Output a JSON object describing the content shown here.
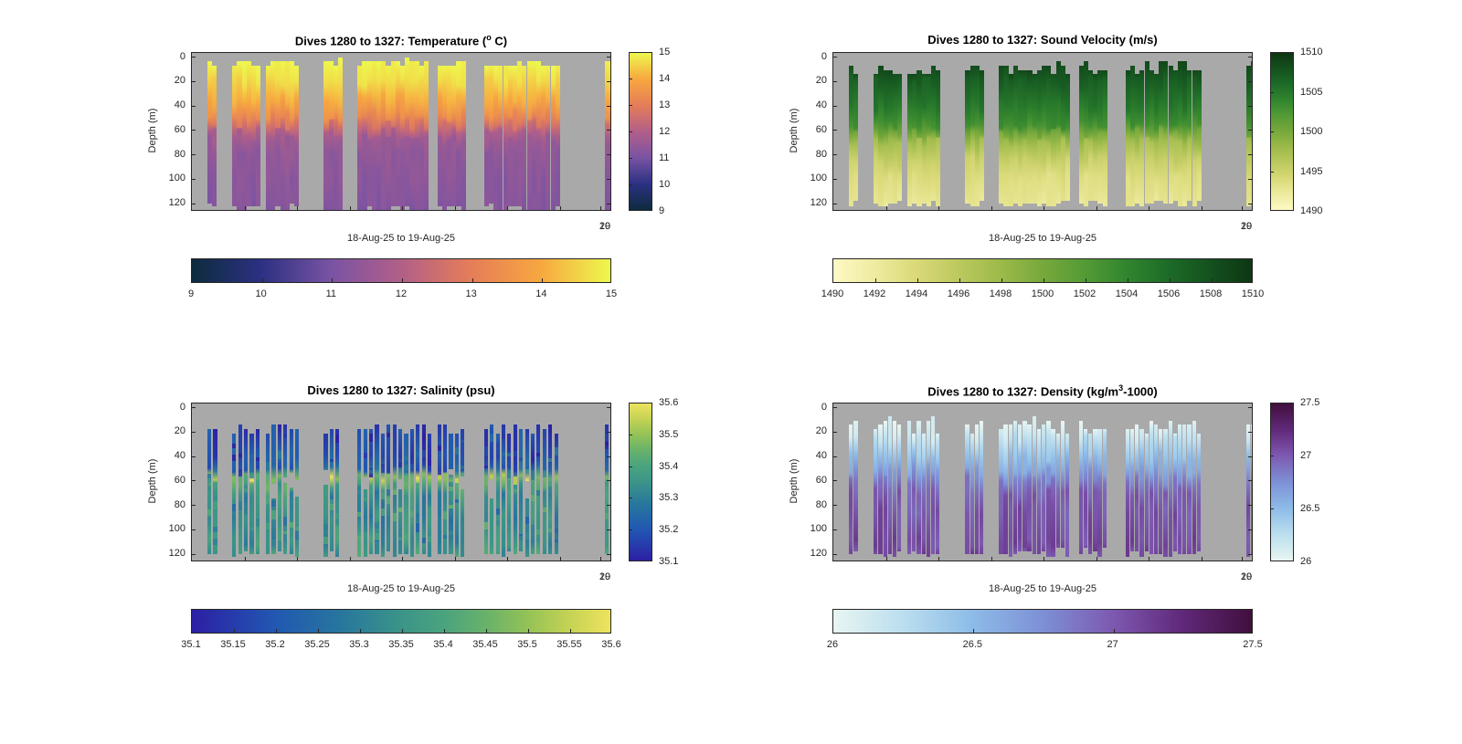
{
  "figure": {
    "background": "#ffffff",
    "plot_background": "#a9a9a9",
    "axis_color": "#262626"
  },
  "chart_data": {
    "type": "heatmap",
    "layout_hint": "2x2 grid of MATLAB-style ocean glider section plots, each with a vertical colorbar at right and a horizontal colorbar below",
    "x_axis": {
      "label": "18-Aug-25 to 19-Aug-25",
      "overlap_tick_labels": [
        "19",
        "20"
      ]
    },
    "y_axis": {
      "label": "Depth (m)",
      "ticks": [
        "0",
        "20",
        "40",
        "60",
        "80",
        "100",
        "120"
      ],
      "tick_values": [
        0,
        20,
        40,
        60,
        80,
        100,
        120
      ],
      "range": [
        -3.4,
        126.7
      ]
    },
    "dive_groups": [
      [
        0.037,
        0.065
      ],
      [
        0.096,
        0.161
      ],
      [
        0.176,
        0.257
      ],
      [
        0.314,
        0.357
      ],
      [
        0.394,
        0.569
      ],
      [
        0.584,
        0.651
      ],
      [
        0.695,
        0.874
      ],
      [
        0.982,
        1.005
      ]
    ],
    "panels": [
      {
        "id": "temperature",
        "title_pre": "Dives 1280 to 1327: Temperature (",
        "title_sup": "o",
        "title_post": " C)",
        "cmin": 9,
        "cmax": 15,
        "colorbar_v_ticks": [
          "9",
          "10",
          "11",
          "12",
          "13",
          "14",
          "15"
        ],
        "colorbar_v_values": [
          9,
          10,
          11,
          12,
          13,
          14,
          15
        ],
        "colorbar_h_ticks": [
          "9",
          "10",
          "11",
          "12",
          "13",
          "14",
          "15"
        ],
        "colorbar_h_values": [
          9,
          10,
          11,
          12,
          13,
          14,
          15
        ],
        "colormap": [
          [
            0,
            "#0d2b3e"
          ],
          [
            0.167,
            "#2c3183"
          ],
          [
            0.333,
            "#7a53a3"
          ],
          [
            0.5,
            "#b25f88"
          ],
          [
            0.667,
            "#e57d58"
          ],
          [
            0.833,
            "#f7a73f"
          ],
          [
            1,
            "#eef84e"
          ]
        ],
        "profile": [
          [
            0,
            15
          ],
          [
            20,
            14.6
          ],
          [
            35,
            14.05
          ],
          [
            48,
            13.4
          ],
          [
            55,
            12.7
          ],
          [
            62,
            11.95
          ],
          [
            68,
            11.6
          ],
          [
            78,
            11.4
          ],
          [
            100,
            11.3
          ],
          [
            127,
            11.2
          ]
        ],
        "bars": {
          "pitch": 5.2,
          "width": 5.2,
          "top_base": 1.5,
          "top_jitter": 7,
          "bottom_base": 121,
          "bottom_jitter": 6,
          "value_jitter": 0.18,
          "depth_jitter": 8,
          "holes": 0,
          "speckles": 0
        }
      },
      {
        "id": "sound-velocity",
        "title_pre": "Dives 1280 to 1327: Sound Velocity (m/s)",
        "title_sup": "",
        "title_post": "",
        "cmin": 1490,
        "cmax": 1510,
        "colorbar_v_ticks": [
          "1490",
          "1495",
          "1500",
          "1505",
          "1510"
        ],
        "colorbar_v_values": [
          1490,
          1495,
          1500,
          1505,
          1510
        ],
        "colorbar_h_ticks": [
          "1490",
          "1492",
          "1494",
          "1496",
          "1498",
          "1500",
          "1502",
          "1504",
          "1506",
          "1508",
          "1510"
        ],
        "colorbar_h_values": [
          1490,
          1492,
          1494,
          1496,
          1498,
          1500,
          1502,
          1504,
          1506,
          1508,
          1510
        ],
        "colormap": [
          [
            0,
            "#fdf9c4"
          ],
          [
            0.1,
            "#eeeba0"
          ],
          [
            0.2,
            "#d9d977"
          ],
          [
            0.3,
            "#bcc95e"
          ],
          [
            0.4,
            "#9cba4a"
          ],
          [
            0.5,
            "#77a83c"
          ],
          [
            0.6,
            "#549b35"
          ],
          [
            0.7,
            "#31852e"
          ],
          [
            0.8,
            "#1d6b28"
          ],
          [
            0.9,
            "#14511e"
          ],
          [
            1,
            "#0e3613"
          ]
        ],
        "profile": [
          [
            0,
            1508.5
          ],
          [
            20,
            1507
          ],
          [
            40,
            1505
          ],
          [
            55,
            1503
          ],
          [
            62,
            1500
          ],
          [
            70,
            1497.5
          ],
          [
            85,
            1495
          ],
          [
            100,
            1493.5
          ],
          [
            127,
            1492.6
          ]
        ],
        "bars": {
          "pitch": 5.2,
          "width": 5.2,
          "top_base": 3,
          "top_jitter": 13,
          "bottom_base": 117,
          "bottom_jitter": 6,
          "value_jitter": 0.5,
          "depth_jitter": 8,
          "holes": 0,
          "speckles": 0
        }
      },
      {
        "id": "salinity",
        "title_pre": "Dives 1280 to 1327: Salinity (psu)",
        "title_sup": "",
        "title_post": "",
        "cmin": 35.1,
        "cmax": 35.6,
        "colorbar_v_ticks": [
          "35.1",
          "35.2",
          "35.3",
          "35.4",
          "35.5",
          "35.6"
        ],
        "colorbar_v_values": [
          35.1,
          35.2,
          35.3,
          35.4,
          35.5,
          35.6
        ],
        "colorbar_h_ticks": [
          "35.1",
          "35.15",
          "35.2",
          "35.25",
          "35.3",
          "35.35",
          "35.4",
          "35.45",
          "35.5",
          "35.55",
          "35.6"
        ],
        "colorbar_h_values": [
          35.1,
          35.15,
          35.2,
          35.25,
          35.3,
          35.35,
          35.4,
          35.45,
          35.5,
          35.55,
          35.6
        ],
        "colormap": [
          [
            0,
            "#2c1fa4"
          ],
          [
            0.2,
            "#2158b2"
          ],
          [
            0.35,
            "#27759e"
          ],
          [
            0.5,
            "#3b9488"
          ],
          [
            0.6,
            "#4aa37e"
          ],
          [
            0.7,
            "#67b16b"
          ],
          [
            0.8,
            "#93c257"
          ],
          [
            0.9,
            "#c4d254"
          ],
          [
            1,
            "#eee35e"
          ]
        ],
        "profile": [
          [
            14,
            35.16
          ],
          [
            40,
            35.18
          ],
          [
            50,
            35.22
          ],
          [
            57,
            35.46
          ],
          [
            63,
            35.4
          ],
          [
            72,
            35.34
          ],
          [
            90,
            35.33
          ],
          [
            110,
            35.35
          ],
          [
            127,
            35.37
          ]
        ],
        "bars": {
          "pitch": 6.4,
          "width": 4.2,
          "top_base": 13,
          "top_jitter": 8,
          "bottom_base": 118,
          "bottom_jitter": 5,
          "value_jitter": 0.07,
          "depth_jitter": 6,
          "holes": 0.3,
          "speckles": 3
        }
      },
      {
        "id": "density",
        "title_pre": "Dives 1280 to 1327: Density (kg/m",
        "title_sup": "3",
        "title_post": "-1000)",
        "cmin": 26,
        "cmax": 27.5,
        "colorbar_v_ticks": [
          "26",
          "26.5",
          "27",
          "27.5"
        ],
        "colorbar_v_values": [
          26,
          26.5,
          27,
          27.5
        ],
        "colorbar_h_ticks": [
          "26",
          "26.5",
          "27",
          "27.5"
        ],
        "colorbar_h_values": [
          26,
          26.5,
          27,
          27.5
        ],
        "colormap": [
          [
            0,
            "#e8f5f2"
          ],
          [
            0.17,
            "#badeee"
          ],
          [
            0.33,
            "#8dbce8"
          ],
          [
            0.5,
            "#7d90d6"
          ],
          [
            0.67,
            "#7d58b0"
          ],
          [
            0.83,
            "#61297a"
          ],
          [
            1,
            "#410f3d"
          ]
        ],
        "profile": [
          [
            12,
            26.05
          ],
          [
            25,
            26.2
          ],
          [
            40,
            26.45
          ],
          [
            52,
            26.65
          ],
          [
            60,
            26.82
          ],
          [
            70,
            26.97
          ],
          [
            85,
            27.02
          ],
          [
            110,
            27.06
          ],
          [
            127,
            27.08
          ]
        ],
        "bars": {
          "pitch": 5.2,
          "width": 4.3,
          "top_base": 8,
          "top_jitter": 15,
          "bottom_base": 116,
          "bottom_jitter": 6,
          "value_jitter": 0.1,
          "depth_jitter": 8,
          "holes": 0,
          "speckles": 0
        }
      }
    ]
  }
}
